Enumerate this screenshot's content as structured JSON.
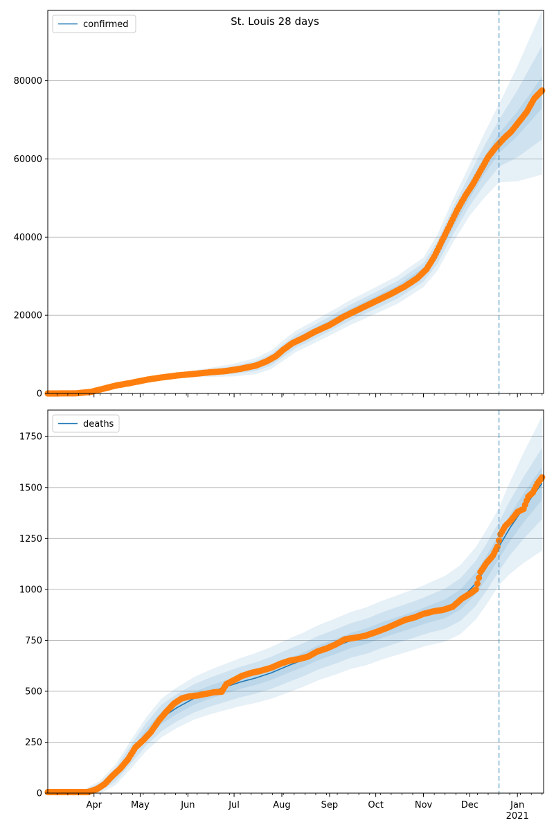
{
  "title": "St. Louis 28 days",
  "colors": {
    "model_line": "#1f77b4",
    "band": "#1f77b4",
    "observed": "#ff7f0e",
    "grid": "#b0b0b0",
    "vline": "#1f77b4"
  },
  "forecast_start": "2020-12-20",
  "chart_data": [
    {
      "type": "line",
      "legend": "confirmed",
      "legend_position": "top-left",
      "grid": "y",
      "xlim": [
        "2020-03-02",
        "2021-01-18"
      ],
      "ylim": [
        0,
        98000
      ],
      "yticks": [
        0,
        20000,
        40000,
        60000,
        80000
      ],
      "ytick_labels": [
        "0",
        "20000",
        "40000",
        "60000",
        "80000"
      ],
      "model_points": [
        [
          "2020-03-02",
          0
        ],
        [
          "2020-03-20",
          20
        ],
        [
          "2020-04-01",
          700
        ],
        [
          "2020-04-15",
          2000
        ],
        [
          "2020-05-01",
          3100
        ],
        [
          "2020-05-15",
          4100
        ],
        [
          "2020-06-01",
          5000
        ],
        [
          "2020-06-15",
          5400
        ],
        [
          "2020-07-01",
          6000
        ],
        [
          "2020-07-15",
          7000
        ],
        [
          "2020-07-25",
          8600
        ],
        [
          "2020-08-01",
          10700
        ],
        [
          "2020-08-10",
          13300
        ],
        [
          "2020-08-20",
          15300
        ],
        [
          "2020-09-01",
          17800
        ],
        [
          "2020-09-15",
          20800
        ],
        [
          "2020-10-01",
          23800
        ],
        [
          "2020-10-15",
          26500
        ],
        [
          "2020-11-01",
          31000
        ],
        [
          "2020-11-10",
          36000
        ],
        [
          "2020-11-20",
          44000
        ],
        [
          "2020-12-01",
          52000
        ],
        [
          "2020-12-10",
          58000
        ],
        [
          "2020-12-20",
          64000
        ],
        [
          "2021-01-01",
          69000
        ],
        [
          "2021-01-10",
          73500
        ],
        [
          "2021-01-17",
          77000
        ]
      ],
      "band_widths": [
        [
          [
            "2020-03-02",
            0
          ],
          [
            "2020-06-01",
            200
          ],
          [
            "2020-08-01",
            800
          ],
          [
            "2020-11-01",
            1200
          ],
          [
            "2020-12-01",
            2000
          ],
          [
            "2020-12-20",
            2500
          ],
          [
            "2021-01-17",
            4000
          ]
        ],
        [
          [
            "2020-03-02",
            0
          ],
          [
            "2020-06-01",
            400
          ],
          [
            "2020-08-01",
            1600
          ],
          [
            "2020-11-01",
            2400
          ],
          [
            "2020-12-01",
            4000
          ],
          [
            "2020-12-20",
            6000
          ],
          [
            "2021-01-17",
            12000
          ]
        ],
        [
          [
            "2020-03-02",
            0
          ],
          [
            "2020-06-01",
            700
          ],
          [
            "2020-08-01",
            2600
          ],
          [
            "2020-11-01",
            3800
          ],
          [
            "2020-12-01",
            6500
          ],
          [
            "2020-12-20",
            10000
          ],
          [
            "2021-01-17",
            21000
          ]
        ]
      ],
      "observed_points": [
        [
          "2020-03-02",
          0
        ],
        [
          "2020-03-20",
          20
        ],
        [
          "2020-03-30",
          400
        ],
        [
          "2020-04-05",
          1000
        ],
        [
          "2020-04-15",
          2000
        ],
        [
          "2020-04-25",
          2700
        ],
        [
          "2020-05-05",
          3500
        ],
        [
          "2020-05-15",
          4100
        ],
        [
          "2020-05-25",
          4600
        ],
        [
          "2020-06-05",
          5000
        ],
        [
          "2020-06-15",
          5400
        ],
        [
          "2020-06-25",
          5700
        ],
        [
          "2020-07-05",
          6300
        ],
        [
          "2020-07-15",
          7100
        ],
        [
          "2020-07-22",
          8200
        ],
        [
          "2020-07-28",
          9500
        ],
        [
          "2020-08-02",
          11200
        ],
        [
          "2020-08-08",
          12900
        ],
        [
          "2020-08-15",
          14200
        ],
        [
          "2020-08-22",
          15700
        ],
        [
          "2020-09-01",
          17500
        ],
        [
          "2020-09-10",
          19600
        ],
        [
          "2020-09-20",
          21500
        ],
        [
          "2020-10-01",
          23600
        ],
        [
          "2020-10-10",
          25300
        ],
        [
          "2020-10-20",
          27400
        ],
        [
          "2020-10-28",
          29500
        ],
        [
          "2020-11-03",
          31800
        ],
        [
          "2020-11-08",
          35000
        ],
        [
          "2020-11-13",
          39000
        ],
        [
          "2020-11-18",
          43000
        ],
        [
          "2020-11-23",
          47000
        ],
        [
          "2020-11-28",
          50500
        ],
        [
          "2020-12-03",
          53500
        ],
        [
          "2020-12-08",
          57000
        ],
        [
          "2020-12-13",
          60500
        ],
        [
          "2020-12-18",
          63000
        ],
        [
          "2020-12-23",
          65200
        ],
        [
          "2020-12-28",
          67000
        ],
        [
          "2021-01-02",
          69500
        ],
        [
          "2021-01-07",
          72000
        ],
        [
          "2021-01-12",
          75500
        ],
        [
          "2021-01-17",
          77500
        ]
      ]
    },
    {
      "type": "line",
      "legend": "deaths",
      "legend_position": "top-left",
      "grid": "y",
      "xlim": [
        "2020-03-02",
        "2021-01-18"
      ],
      "ylim": [
        0,
        1880
      ],
      "yticks": [
        0,
        250,
        500,
        750,
        1000,
        1250,
        1500,
        1750
      ],
      "ytick_labels": [
        "0",
        "250",
        "500",
        "750",
        "1000",
        "1250",
        "1500",
        "1750"
      ],
      "model_points": [
        [
          "2020-03-02",
          0
        ],
        [
          "2020-03-25",
          5
        ],
        [
          "2020-04-05",
          30
        ],
        [
          "2020-04-15",
          90
        ],
        [
          "2020-04-25",
          190
        ],
        [
          "2020-05-05",
          290
        ],
        [
          "2020-05-15",
          370
        ],
        [
          "2020-05-25",
          420
        ],
        [
          "2020-06-05",
          465
        ],
        [
          "2020-06-15",
          495
        ],
        [
          "2020-06-25",
          520
        ],
        [
          "2020-07-05",
          545
        ],
        [
          "2020-07-15",
          565
        ],
        [
          "2020-07-25",
          590
        ],
        [
          "2020-08-05",
          625
        ],
        [
          "2020-08-15",
          655
        ],
        [
          "2020-08-25",
          690
        ],
        [
          "2020-09-05",
          720
        ],
        [
          "2020-09-15",
          750
        ],
        [
          "2020-09-25",
          770
        ],
        [
          "2020-10-05",
          800
        ],
        [
          "2020-10-15",
          825
        ],
        [
          "2020-10-25",
          850
        ],
        [
          "2020-11-05",
          880
        ],
        [
          "2020-11-15",
          905
        ],
        [
          "2020-11-25",
          950
        ],
        [
          "2020-12-05",
          1030
        ],
        [
          "2020-12-12",
          1110
        ],
        [
          "2020-12-20",
          1210
        ],
        [
          "2020-12-27",
          1300
        ],
        [
          "2021-01-05",
          1400
        ],
        [
          "2021-01-12",
          1470
        ],
        [
          "2021-01-17",
          1520
        ]
      ],
      "band_widths": [
        [
          [
            "2020-03-02",
            0
          ],
          [
            "2020-03-25",
            3
          ],
          [
            "2020-04-25",
            20
          ],
          [
            "2020-05-15",
            30
          ],
          [
            "2020-08-01",
            35
          ],
          [
            "2020-11-01",
            40
          ],
          [
            "2020-12-20",
            60
          ],
          [
            "2021-01-17",
            80
          ]
        ],
        [
          [
            "2020-03-02",
            0
          ],
          [
            "2020-03-25",
            6
          ],
          [
            "2020-04-25",
            45
          ],
          [
            "2020-05-15",
            65
          ],
          [
            "2020-08-01",
            80
          ],
          [
            "2020-11-01",
            90
          ],
          [
            "2020-12-20",
            120
          ],
          [
            "2021-01-17",
            175
          ]
        ],
        [
          [
            "2020-03-02",
            0
          ],
          [
            "2020-03-25",
            10
          ],
          [
            "2020-04-25",
            70
          ],
          [
            "2020-05-15",
            95
          ],
          [
            "2020-08-01",
            130
          ],
          [
            "2020-11-01",
            150
          ],
          [
            "2020-12-20",
            190
          ],
          [
            "2021-01-17",
            330
          ]
        ]
      ],
      "observed_points": [
        [
          "2020-03-02",
          5
        ],
        [
          "2020-03-15",
          5
        ],
        [
          "2020-03-28",
          5
        ],
        [
          "2020-04-03",
          20
        ],
        [
          "2020-04-08",
          45
        ],
        [
          "2020-04-13",
          85
        ],
        [
          "2020-04-18",
          120
        ],
        [
          "2020-04-23",
          165
        ],
        [
          "2020-04-28",
          225
        ],
        [
          "2020-05-03",
          260
        ],
        [
          "2020-05-08",
          300
        ],
        [
          "2020-05-13",
          355
        ],
        [
          "2020-05-18",
          400
        ],
        [
          "2020-05-23",
          440
        ],
        [
          "2020-05-28",
          465
        ],
        [
          "2020-06-02",
          475
        ],
        [
          "2020-06-08",
          480
        ],
        [
          "2020-06-13",
          488
        ],
        [
          "2020-06-18",
          495
        ],
        [
          "2020-06-23",
          498
        ],
        [
          "2020-06-26",
          535
        ],
        [
          "2020-07-01",
          555
        ],
        [
          "2020-07-06",
          575
        ],
        [
          "2020-07-12",
          590
        ],
        [
          "2020-07-18",
          600
        ],
        [
          "2020-07-25",
          615
        ],
        [
          "2020-07-31",
          635
        ],
        [
          "2020-08-06",
          650
        ],
        [
          "2020-08-12",
          658
        ],
        [
          "2020-08-18",
          670
        ],
        [
          "2020-08-24",
          695
        ],
        [
          "2020-08-30",
          710
        ],
        [
          "2020-09-05",
          730
        ],
        [
          "2020-09-11",
          755
        ],
        [
          "2020-09-17",
          762
        ],
        [
          "2020-09-24",
          772
        ],
        [
          "2020-10-01",
          790
        ],
        [
          "2020-10-08",
          810
        ],
        [
          "2020-10-14",
          830
        ],
        [
          "2020-10-20",
          850
        ],
        [
          "2020-10-26",
          862
        ],
        [
          "2020-11-01",
          880
        ],
        [
          "2020-11-08",
          893
        ],
        [
          "2020-11-14",
          900
        ],
        [
          "2020-11-20",
          915
        ],
        [
          "2020-11-26",
          955
        ],
        [
          "2020-12-01",
          978
        ],
        [
          "2020-12-05",
          1000
        ],
        [
          "2020-12-08",
          1085
        ],
        [
          "2020-12-12",
          1130
        ],
        [
          "2020-12-16",
          1165
        ],
        [
          "2020-12-19",
          1210
        ],
        [
          "2020-12-21",
          1270
        ],
        [
          "2020-12-24",
          1310
        ],
        [
          "2020-12-28",
          1340
        ],
        [
          "2021-01-01",
          1380
        ],
        [
          "2021-01-05",
          1395
        ],
        [
          "2021-01-08",
          1455
        ],
        [
          "2021-01-11",
          1475
        ],
        [
          "2021-01-14",
          1520
        ],
        [
          "2021-01-17",
          1550
        ]
      ]
    }
  ],
  "xaxis": {
    "month_ticks": [
      "2020-04-01",
      "2020-05-01",
      "2020-06-01",
      "2020-07-01",
      "2020-08-01",
      "2020-09-01",
      "2020-10-01",
      "2020-11-01",
      "2020-12-01",
      "2021-01-01"
    ],
    "month_labels": [
      "Apr",
      "May",
      "Jun",
      "Jul",
      "Aug",
      "Sep",
      "Oct",
      "Nov",
      "Dec",
      "Jan"
    ],
    "year_label": "2021"
  }
}
